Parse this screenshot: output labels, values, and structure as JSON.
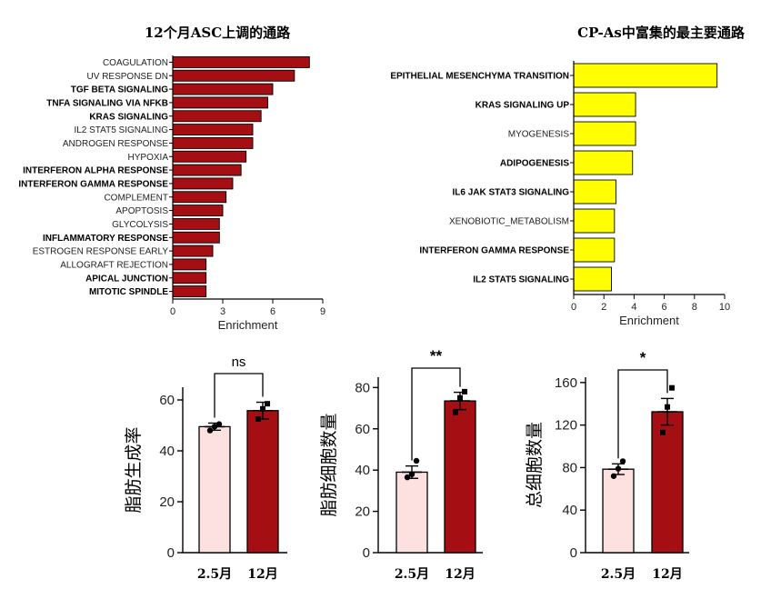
{
  "chart_data": [
    {
      "type": "bar",
      "orientation": "horizontal",
      "title": "12个月ASC上调的通路",
      "xlabel": "Enrichment",
      "xlim": [
        0,
        9
      ],
      "xticks": [
        "0",
        "3",
        "6",
        "9"
      ],
      "bar_color": "#a50e12",
      "categories": [
        "COAGULATION",
        "UV RESPONSE DN",
        "TGF BETA SIGNALING",
        "TNFA SIGNALING VIA NFKB",
        "KRAS SIGNALING",
        "IL2 STAT5 SIGNALING",
        "ANDROGEN RESPONSE",
        "HYPOXIA",
        "INTERFERON ALPHA RESPONSE",
        "INTERFERON GAMMA RESPONSE",
        "COMPLEMENT",
        "APOPTOSIS",
        "GLYCOLYSIS",
        "INFLAMMATORY RESPONSE",
        "ESTROGEN RESPONSE EARLY",
        "ALLOGRAFT REJECTION",
        "APICAL JUNCTION",
        "MITOTIC SPINDLE"
      ],
      "bold": [
        false,
        false,
        true,
        true,
        true,
        false,
        false,
        false,
        true,
        true,
        false,
        false,
        false,
        true,
        false,
        false,
        true,
        true
      ],
      "values": [
        8.2,
        7.3,
        6.0,
        5.7,
        5.3,
        4.8,
        4.8,
        4.4,
        4.1,
        3.6,
        3.2,
        3.0,
        2.8,
        2.8,
        2.4,
        2.0,
        2.0,
        2.0
      ]
    },
    {
      "type": "bar",
      "orientation": "horizontal",
      "title": "CP-As中富集的最主要通路",
      "xlabel": "Enrichment",
      "xlim": [
        0,
        10
      ],
      "xticks": [
        "0",
        "2",
        "4",
        "6",
        "8",
        "10"
      ],
      "bar_color": "#ffff00",
      "categories": [
        "EPITHELIAL MESENCHYMA TRANSITION",
        "KRAS SIGNALING UP",
        "MYOGENESIS",
        "ADIPOGENESIS",
        "IL6 JAK STAT3 SIGNALING",
        "XENOBIOTIC_METABOLISM",
        "INTERFERON GAMMA RESPONSE",
        "IL2 STAT5 SIGNALING"
      ],
      "bold": [
        true,
        true,
        false,
        true,
        true,
        false,
        true,
        true
      ],
      "values": [
        9.5,
        4.1,
        4.1,
        3.9,
        2.8,
        2.7,
        2.7,
        2.5
      ]
    },
    {
      "type": "bar",
      "ylabel": "脂肪生成率",
      "categories": [
        "2.5月",
        "12月"
      ],
      "values": [
        49.5,
        55.8
      ],
      "errors": [
        1.4,
        3.3
      ],
      "points": [
        [
          48.0,
          49.5,
          50.5
        ],
        [
          52.5,
          56.5,
          58.5
        ]
      ],
      "ylim": [
        0,
        65
      ],
      "yticks": [
        0,
        20,
        40,
        60
      ],
      "significance": "ns",
      "colors": [
        "#fde0e0",
        "#a50e12"
      ]
    },
    {
      "type": "bar",
      "ylabel": "脂肪细胞数量",
      "categories": [
        "2.5月",
        "12月"
      ],
      "values": [
        39,
        73.5
      ],
      "errors": [
        3.0,
        4.2
      ],
      "points": [
        [
          36.5,
          38.0,
          44.5
        ],
        [
          68.0,
          75.0,
          78.0
        ]
      ],
      "ylim": [
        0,
        85
      ],
      "yticks": [
        0,
        20,
        40,
        60,
        80
      ],
      "significance": "**",
      "colors": [
        "#fde0e0",
        "#a50e12"
      ]
    },
    {
      "type": "bar",
      "ylabel": "总细胞数量",
      "categories": [
        "2.5月",
        "12月"
      ],
      "values": [
        78.5,
        132.5
      ],
      "errors": [
        5.0,
        12.5
      ],
      "points": [
        [
          72.0,
          79.0,
          86.0
        ],
        [
          113.0,
          137.0,
          155.0
        ]
      ],
      "ylim": [
        0,
        165
      ],
      "yticks": [
        0,
        40,
        80,
        120,
        160
      ],
      "significance": "*",
      "colors": [
        "#fde0e0",
        "#a50e12"
      ]
    }
  ]
}
